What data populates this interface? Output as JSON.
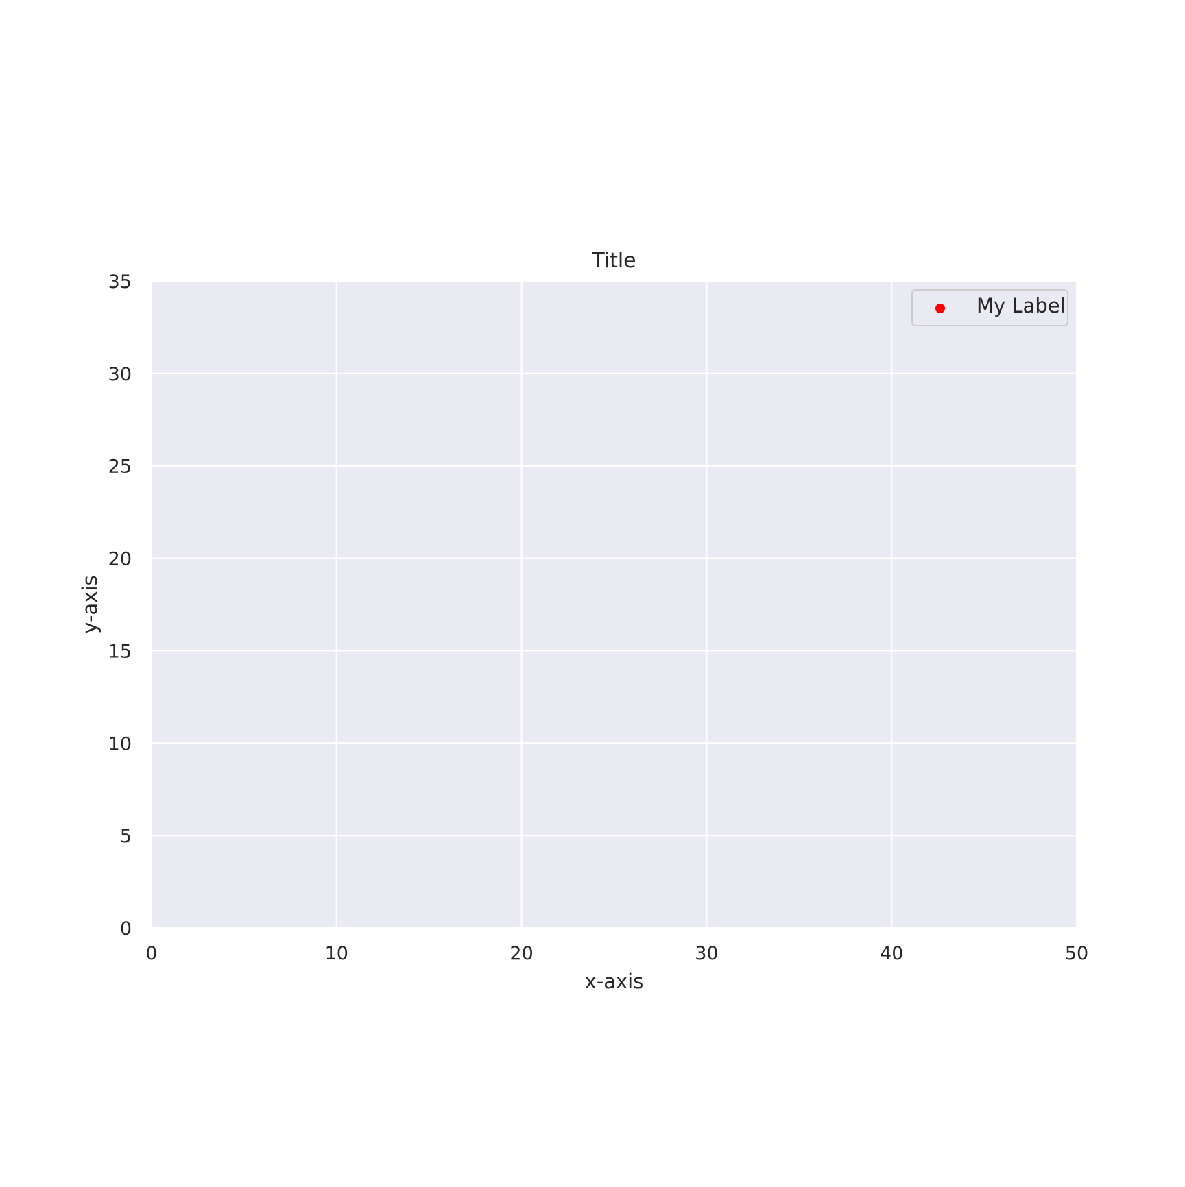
{
  "chart_data": {
    "type": "scatter",
    "title": "Title",
    "xlabel": "x-axis",
    "ylabel": "y-axis",
    "xlim": [
      0,
      50
    ],
    "ylim": [
      0,
      35
    ],
    "xticks": [
      0,
      10,
      20,
      30,
      40,
      50
    ],
    "yticks": [
      0,
      5,
      10,
      15,
      20,
      25,
      30,
      35
    ],
    "grid": true,
    "legend_position": "top-right",
    "series": [
      {
        "name": "My Label",
        "color": "#ff0000",
        "marker": "circle",
        "points": []
      }
    ]
  },
  "colors": {
    "plot_background": "#eaeaf2",
    "grid": "#ffffff",
    "legend_border": "#cccccc",
    "text": "#262626"
  }
}
